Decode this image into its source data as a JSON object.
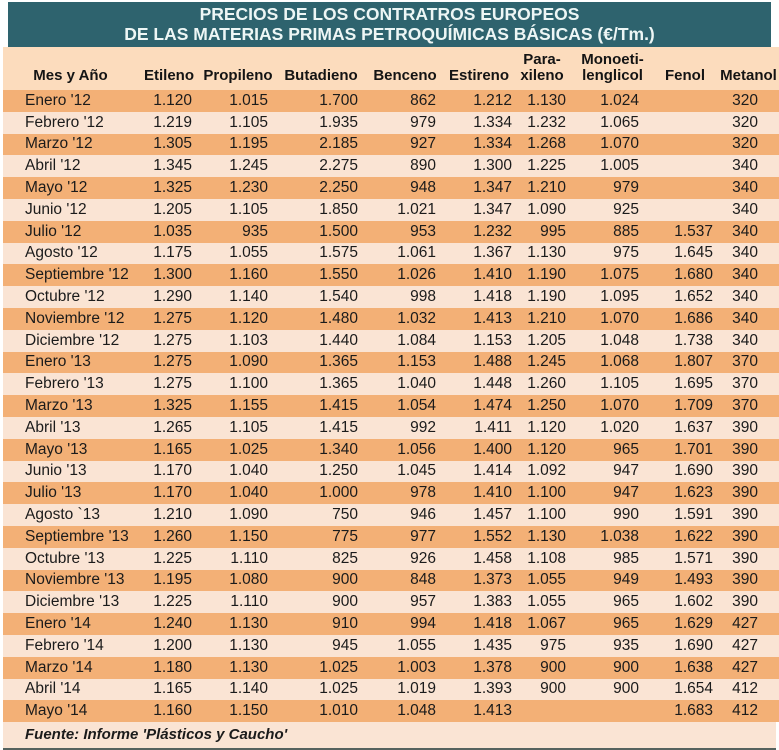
{
  "title": {
    "line1": "PRECIOS DE LOS CONTRATROS EUROPEOS",
    "line2": "DE LAS MATERIAS PRIMAS PETROQUÍMICAS BÁSICAS (€/Tm.)"
  },
  "chart_data": {
    "type": "table",
    "title": "PRECIOS DE LOS CONTRATROS EUROPEOS DE LAS MATERIAS PRIMAS PETROQUÍMICAS BÁSICAS (€/Tm.)",
    "columns": [
      "Mes y Año",
      "Etileno",
      "Propileno",
      "Butadieno",
      "Benceno",
      "Estireno",
      "Para-\nxileno",
      "Monoeti-\nlenglicol",
      "Fenol",
      "Metanol"
    ],
    "rows": [
      [
        "Enero '12",
        "1.120",
        "1.015",
        "1.700",
        "862",
        "1.212",
        "1.130",
        "1.024",
        "",
        "320"
      ],
      [
        "Febrero '12",
        "1.219",
        "1.105",
        "1.935",
        "979",
        "1.334",
        "1.232",
        "1.065",
        "",
        "320"
      ],
      [
        "Marzo '12",
        "1.305",
        "1.195",
        "2.185",
        "927",
        "1.334",
        "1.268",
        "1.070",
        "",
        "320"
      ],
      [
        "Abril '12",
        "1.345",
        "1.245",
        "2.275",
        "890",
        "1.300",
        "1.225",
        "1.005",
        "",
        "340"
      ],
      [
        "Mayo '12",
        "1.325",
        "1.230",
        "2.250",
        "948",
        "1.347",
        "1.210",
        "979",
        "",
        "340"
      ],
      [
        "Junio '12",
        "1.205",
        "1.105",
        "1.850",
        "1.021",
        "1.347",
        "1.090",
        "925",
        "",
        "340"
      ],
      [
        "Julio '12",
        "1.035",
        "935",
        "1.500",
        "953",
        "1.232",
        "995",
        "885",
        "1.537",
        "340"
      ],
      [
        "Agosto '12",
        "1.175",
        "1.055",
        "1.575",
        "1.061",
        "1.367",
        "1.130",
        "975",
        "1.645",
        "340"
      ],
      [
        "Septiembre '12",
        "1.300",
        "1.160",
        "1.550",
        "1.026",
        "1.410",
        "1.190",
        "1.075",
        "1.680",
        "340"
      ],
      [
        "Octubre '12",
        "1.290",
        "1.140",
        "1.540",
        "998",
        "1.418",
        "1.190",
        "1.095",
        "1.652",
        "340"
      ],
      [
        "Noviembre '12",
        "1.275",
        "1.120",
        "1.480",
        "1.032",
        "1.413",
        "1.210",
        "1.070",
        "1.686",
        "340"
      ],
      [
        "Diciembre '12",
        "1.275",
        "1.103",
        "1.440",
        "1.084",
        "1.153",
        "1.205",
        "1.048",
        "1.738",
        "340"
      ],
      [
        "Enero '13",
        "1.275",
        "1.090",
        "1.365",
        "1.153",
        "1.488",
        "1.245",
        "1.068",
        "1.807",
        "370"
      ],
      [
        "Febrero '13",
        "1.275",
        "1.100",
        "1.365",
        "1.040",
        "1.448",
        "1.260",
        "1.105",
        "1.695",
        "370"
      ],
      [
        "Marzo '13",
        "1.325",
        "1.155",
        "1.415",
        "1.054",
        "1.474",
        "1.250",
        "1.070",
        "1.709",
        "370"
      ],
      [
        "Abril '13",
        "1.265",
        "1.105",
        "1.415",
        "992",
        "1.411",
        "1.120",
        "1.020",
        "1.637",
        "390"
      ],
      [
        "Mayo '13",
        "1.165",
        "1.025",
        "1.340",
        "1.056",
        "1.400",
        "1.120",
        "965",
        "1.701",
        "390"
      ],
      [
        "Junio '13",
        "1.170",
        "1.040",
        "1.250",
        "1.045",
        "1.414",
        "1.092",
        "947",
        "1.690",
        "390"
      ],
      [
        "Julio '13",
        "1.170",
        "1.040",
        "1.000",
        "978",
        "1.410",
        "1.100",
        "947",
        "1.623",
        "390"
      ],
      [
        "Agosto `13",
        "1.210",
        "1.090",
        "750",
        "946",
        "1.457",
        "1.100",
        "990",
        "1.591",
        "390"
      ],
      [
        "Septiembre '13",
        "1.260",
        "1.150",
        "775",
        "977",
        "1.552",
        "1.130",
        "1.038",
        "1.622",
        "390"
      ],
      [
        "Octubre '13",
        "1.225",
        "1.110",
        "825",
        "926",
        "1.458",
        "1.108",
        "985",
        "1.571",
        "390"
      ],
      [
        "Noviembre '13",
        "1.195",
        "1.080",
        "900",
        "848",
        "1.373",
        "1.055",
        "949",
        "1.493",
        "390"
      ],
      [
        "Diciembre '13",
        "1.225",
        "1.110",
        "900",
        "957",
        "1.383",
        "1.055",
        "965",
        "1.602",
        "390"
      ],
      [
        "Enero '14",
        "1.240",
        "1.130",
        "910",
        "994",
        "1.418",
        "1.067",
        "965",
        "1.629",
        "427"
      ],
      [
        "Febrero '14",
        "1.200",
        "1.130",
        "945",
        "1.055",
        "1.435",
        "975",
        "935",
        "1.690",
        "427"
      ],
      [
        "Marzo '14",
        "1.180",
        "1.130",
        "1.025",
        "1.003",
        "1.378",
        "900",
        "900",
        "1.638",
        "427"
      ],
      [
        "Abril '14",
        "1.165",
        "1.140",
        "1.025",
        "1.019",
        "1.393",
        "900",
        "900",
        "1.654",
        "412"
      ],
      [
        "Mayo '14",
        "1.160",
        "1.150",
        "1.010",
        "1.048",
        "1.413",
        "",
        "",
        "1.683",
        "412"
      ]
    ]
  },
  "footer": {
    "source": "Fuente: Informe 'Plásticos y Caucho'"
  },
  "colors": {
    "title_bg": "#2E636E",
    "title_text": "#EDF6F5",
    "header_bg": "#FCDCBD",
    "row_orange": "#F3B076",
    "row_light": "#FAE4D4",
    "text": "#1B1B1B",
    "bottom_border": "#55625E"
  }
}
